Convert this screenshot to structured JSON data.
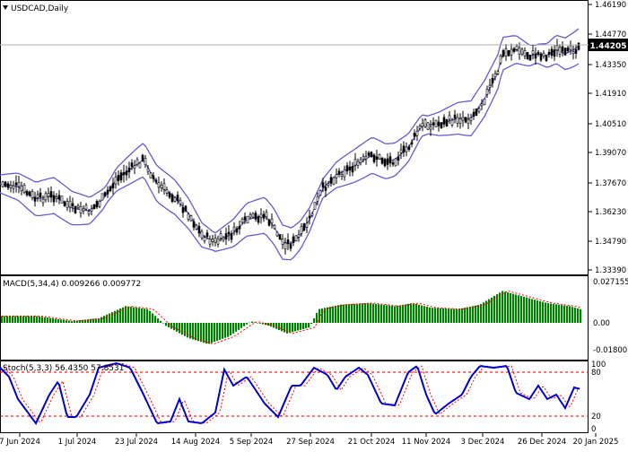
{
  "window": {
    "symbol_label": "USDCAD,Daily",
    "menu_arrow_icon": "triangle-down-icon"
  },
  "colors": {
    "price_candles": "#000000",
    "bollinger": "#6a5acd",
    "macd_histogram": "#008000",
    "macd_signal": "#ff0000",
    "stoch_main": "#0000cd",
    "stoch_signal": "#ff0000",
    "level_lines": "#cc0000",
    "last_price_badge": "#000000",
    "grid_text": "#000000"
  },
  "price_panel": {
    "current_price_label": "1.44205",
    "y_ticks": [
      "1.46190",
      "1.44770",
      "1.43350",
      "1.41910",
      "1.40510",
      "1.39070",
      "1.37670",
      "1.36230",
      "1.34790",
      "1.33390"
    ]
  },
  "macd_panel": {
    "label": "MACD(5,34,4) 0.009266 0.009772",
    "y_ticks": [
      "0.027155",
      "0.00",
      "-0.018008"
    ]
  },
  "stoch_panel": {
    "label": "Stoch(5,3,3) 56.4350 57.8531",
    "y_ticks": [
      "100",
      "80",
      "20",
      "0"
    ]
  },
  "x_axis": {
    "dates": [
      "7 Jun 2024",
      "1 Jul 2024",
      "23 Jul 2024",
      "14 Aug 2024",
      "5 Sep 2024",
      "27 Sep 2024",
      "21 Oct 2024",
      "11 Nov 2024",
      "3 Dec 2024",
      "26 Dec 2024",
      "20 Jan 2025"
    ]
  },
  "chart_data": [
    {
      "type": "candlestick",
      "title": "USDCAD,Daily",
      "x": [
        "7 Jun 2024",
        "1 Jul 2024",
        "23 Jul 2024",
        "14 Aug 2024",
        "5 Sep 2024",
        "27 Sep 2024",
        "21 Oct 2024",
        "11 Nov 2024",
        "3 Dec 2024",
        "26 Dec 2024",
        "20 Jan 2025"
      ],
      "close_approx": [
        1.374,
        1.366,
        1.382,
        1.352,
        1.359,
        1.35,
        1.386,
        1.4,
        1.408,
        1.437,
        1.442
      ],
      "bollinger_upper_approx": [
        1.377,
        1.372,
        1.392,
        1.385,
        1.365,
        1.362,
        1.393,
        1.408,
        1.414,
        1.446,
        1.447
      ],
      "bollinger_lower_approx": [
        1.365,
        1.359,
        1.37,
        1.34,
        1.352,
        1.343,
        1.376,
        1.391,
        1.401,
        1.428,
        1.434
      ],
      "ylim": [
        1.3339,
        1.4619
      ],
      "last_value": 1.44205
    },
    {
      "type": "bar",
      "title": "MACD(5,34,4) 0.009266 0.009772",
      "categories": [
        "7 Jun 2024",
        "1 Jul 2024",
        "23 Jul 2024",
        "14 Aug 2024",
        "5 Sep 2024",
        "27 Sep 2024",
        "21 Oct 2024",
        "11 Nov 2024",
        "3 Dec 2024",
        "26 Dec 2024",
        "20 Jan 2025"
      ],
      "values": [
        0.0045,
        0.0015,
        0.009,
        -0.013,
        -0.004,
        -0.005,
        0.011,
        0.009,
        0.011,
        0.018,
        0.0093
      ],
      "signal": [
        0.0042,
        0.0018,
        0.008,
        -0.012,
        -0.0045,
        -0.0045,
        0.0105,
        0.0092,
        0.0105,
        0.0185,
        0.0098
      ],
      "ylim": [
        -0.018008,
        0.027155
      ]
    },
    {
      "type": "line",
      "title": "Stoch(5,3,3) 56.4350 57.8531",
      "x": [
        "7 Jun 2024",
        "1 Jul 2024",
        "23 Jul 2024",
        "14 Aug 2024",
        "5 Sep 2024",
        "27 Sep 2024",
        "21 Oct 2024",
        "11 Nov 2024",
        "3 Dec 2024",
        "26 Dec 2024",
        "20 Jan 2025"
      ],
      "series": [
        {
          "values": [
            95,
            20,
            90,
            15,
            80,
            40,
            85,
            20,
            95,
            50,
            56
          ]
        },
        {
          "values": [
            92,
            25,
            88,
            18,
            78,
            42,
            82,
            25,
            93,
            52,
            58
          ]
        }
      ],
      "levels": [
        20,
        80
      ],
      "ylim": [
        0,
        100
      ]
    }
  ]
}
